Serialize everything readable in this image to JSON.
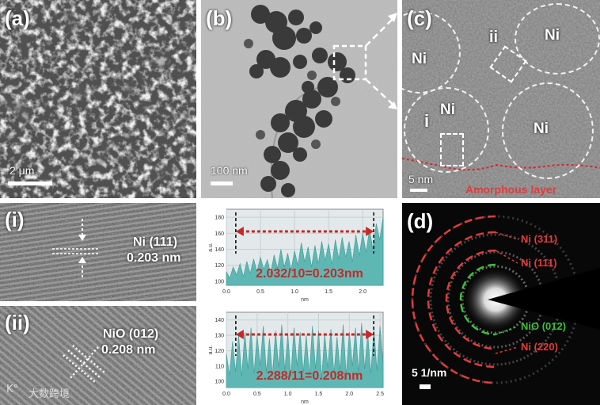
{
  "panels": {
    "a": {
      "label": "(a)",
      "scale": "2 μm"
    },
    "b": {
      "label": "(b)",
      "scale": "100 nm"
    },
    "c": {
      "label": "(c)",
      "scale": "5 nm",
      "particles": [
        "Ni",
        "Ni",
        "Ni",
        "Ni"
      ],
      "region_labels": [
        "i",
        "ii"
      ],
      "amorphous": "Amorphous layer"
    },
    "i": {
      "label": "(i)",
      "plane": "Ni (111)",
      "spacing": "0.203 nm"
    },
    "ii": {
      "label": "(ii)",
      "plane": "NiO (012)",
      "spacing": "0.208 nm"
    },
    "d": {
      "label": "(d)",
      "scale": "5 1/nm",
      "rings": [
        {
          "text": "Ni (311)",
          "color": "#e23b3b"
        },
        {
          "text": "Ni (111)",
          "color": "#e23b3b"
        },
        {
          "text": "NiO (012)",
          "color": "#3cc03c"
        },
        {
          "text": "Ni (220)",
          "color": "#e23b3b"
        }
      ]
    }
  },
  "chart_data": [
    {
      "type": "area",
      "ylabel": "a.u.",
      "xlabel": "nm",
      "x_ticks": [
        "0.0",
        "0.5",
        "1.0",
        "1.5",
        "2.0"
      ],
      "y_ticks": [
        "100",
        "120",
        "140",
        "160",
        "180"
      ],
      "xlim": [
        0,
        2.3
      ],
      "ylim": [
        95,
        190
      ],
      "annotation": "2.032/10=0.203nm",
      "x": [
        0.0,
        0.05,
        0.1,
        0.15,
        0.2,
        0.25,
        0.3,
        0.35,
        0.4,
        0.45,
        0.5,
        0.55,
        0.6,
        0.65,
        0.7,
        0.75,
        0.8,
        0.85,
        0.9,
        0.95,
        1.0,
        1.05,
        1.1,
        1.15,
        1.2,
        1.25,
        1.3,
        1.35,
        1.4,
        1.45,
        1.5,
        1.55,
        1.6,
        1.65,
        1.7,
        1.75,
        1.8,
        1.85,
        1.9,
        1.95,
        2.0,
        2.05,
        2.1,
        2.15,
        2.2,
        2.25,
        2.3
      ],
      "y": [
        112,
        104,
        118,
        108,
        122,
        106,
        125,
        110,
        128,
        112,
        130,
        115,
        127,
        110,
        133,
        116,
        140,
        118,
        135,
        114,
        138,
        120,
        148,
        124,
        143,
        118,
        145,
        122,
        150,
        126,
        147,
        121,
        152,
        128,
        155,
        130,
        150,
        125,
        158,
        132,
        160,
        136,
        165,
        140,
        172,
        152,
        180
      ]
    },
    {
      "type": "area",
      "ylabel": "a.u.",
      "xlabel": "nm",
      "x_ticks": [
        "0.0",
        "0.5",
        "1.0",
        "1.5",
        "2.0",
        "2.5"
      ],
      "y_ticks": [
        "100",
        "110",
        "120",
        "130",
        "140"
      ],
      "xlim": [
        0,
        2.55
      ],
      "ylim": [
        96,
        145
      ],
      "annotation": "2.288/11=0.208nm",
      "x": [
        0.0,
        0.05,
        0.1,
        0.15,
        0.2,
        0.25,
        0.3,
        0.35,
        0.4,
        0.45,
        0.5,
        0.55,
        0.6,
        0.65,
        0.7,
        0.75,
        0.8,
        0.85,
        0.9,
        0.95,
        1.0,
        1.05,
        1.1,
        1.15,
        1.2,
        1.25,
        1.3,
        1.35,
        1.4,
        1.45,
        1.5,
        1.55,
        1.6,
        1.65,
        1.7,
        1.75,
        1.8,
        1.85,
        1.9,
        1.95,
        2.0,
        2.05,
        2.1,
        2.15,
        2.2,
        2.25,
        2.3,
        2.35,
        2.4,
        2.45,
        2.5,
        2.55
      ],
      "y": [
        118,
        104,
        126,
        106,
        130,
        103,
        132,
        108,
        135,
        105,
        130,
        110,
        136,
        106,
        128,
        104,
        133,
        109,
        137,
        107,
        131,
        103,
        135,
        110,
        132,
        106,
        130,
        104,
        136,
        108,
        133,
        102,
        131,
        109,
        134,
        105,
        129,
        107,
        137,
        104,
        132,
        110,
        135,
        106,
        138,
        108,
        131,
        105,
        134,
        107,
        136,
        112
      ]
    }
  ],
  "watermark": "大数跨境"
}
